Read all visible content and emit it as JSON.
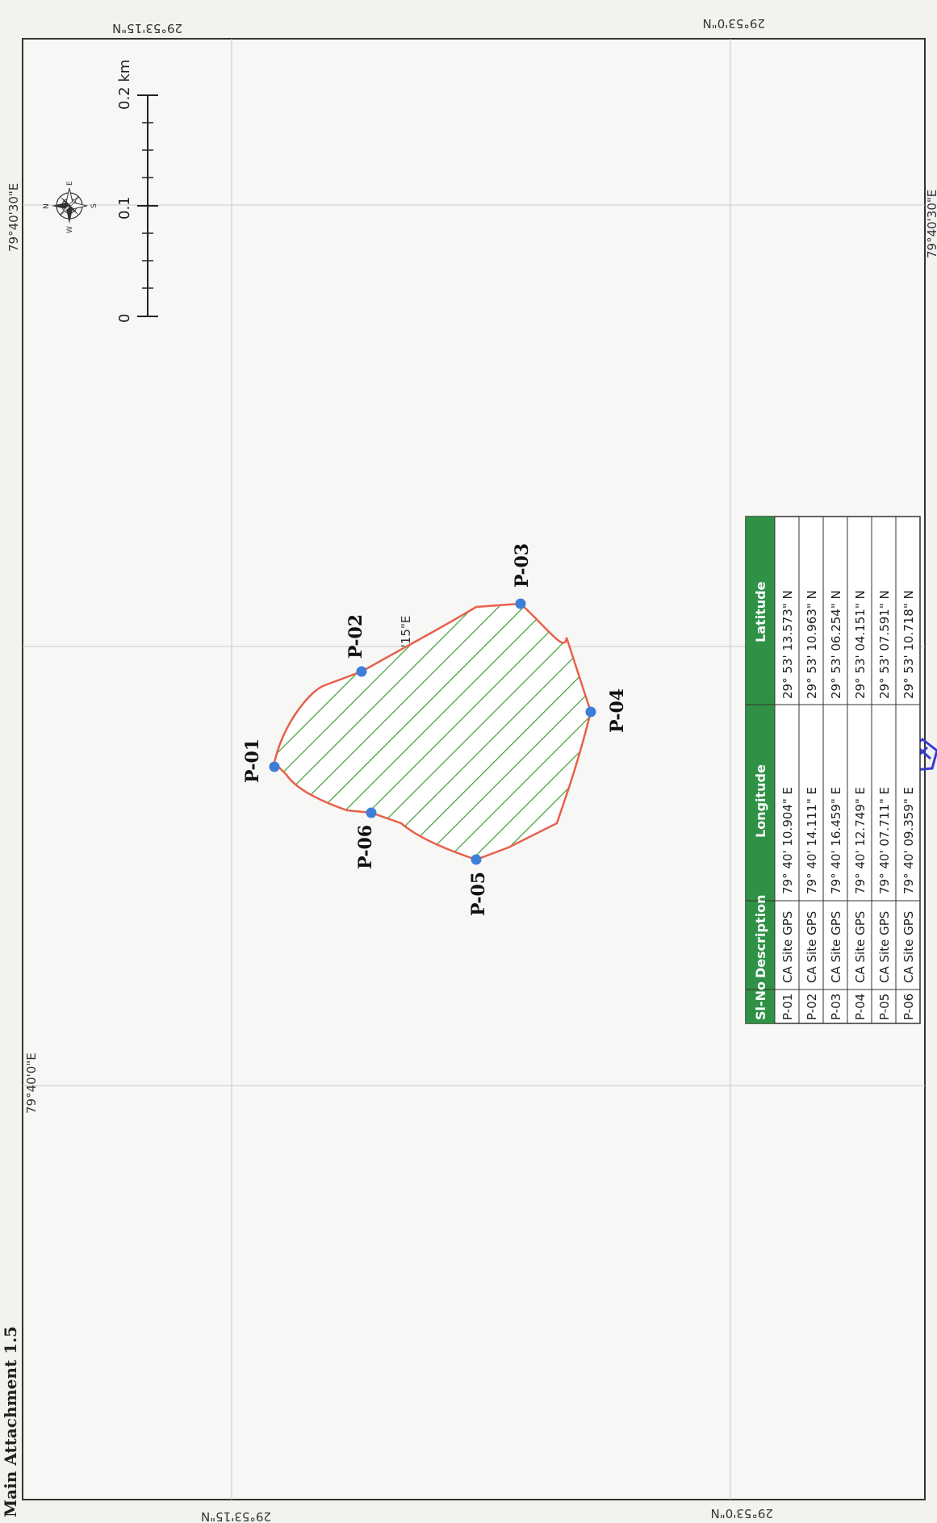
{
  "title": "Main Attachment 1.5",
  "scale_bar": {
    "ticks": [
      "0",
      "0.1",
      "0.2 km"
    ]
  },
  "north_arrow": {
    "icon": "compass-rose-icon",
    "letters": [
      "N",
      "E",
      "S",
      "W"
    ]
  },
  "coordinate_labels": {
    "lon_left": "79°40'0\"E",
    "lon_mid": "79°40'15\"E",
    "lon_right_top": "79°40'30\"E",
    "lon_right_bottom": "79°40'30\"E",
    "lat_top_left": "29°53'15\"N",
    "lat_top_right": "29°53'0\"N",
    "lat_bottom_left": "29°53'15\"N",
    "lat_bottom_right": "29°53'0\"N"
  },
  "points": [
    {
      "id": "P-01",
      "description": "CA Site GPS",
      "longitude": "79° 40' 10.904\" E",
      "latitude": "29° 53' 13.573\" N"
    },
    {
      "id": "P-02",
      "description": "CA Site GPS",
      "longitude": "79° 40' 14.111\" E",
      "latitude": "29° 53' 10.963\" N"
    },
    {
      "id": "P-03",
      "description": "CA Site GPS",
      "longitude": "79° 40' 16.459\" E",
      "latitude": "29° 53' 06.254\" N"
    },
    {
      "id": "P-04",
      "description": "CA Site GPS",
      "longitude": "79° 40' 12.749\" E",
      "latitude": "29° 53' 04.151\" N"
    },
    {
      "id": "P-05",
      "description": "CA Site GPS",
      "longitude": "79° 40' 07.711\" E",
      "latitude": "29° 53' 07.591\" N"
    },
    {
      "id": "P-06",
      "description": "CA Site GPS",
      "longitude": "79° 40' 09.359\" E",
      "latitude": "29° 53' 10.718\" N"
    }
  ],
  "table": {
    "headers": [
      "Sl-No",
      "Description",
      "Longitude",
      "Latitude"
    ]
  },
  "colors": {
    "boundary": "#e8604c",
    "hatch": "#3f9d32",
    "marker": "#3d7fd6",
    "table_header": "#2e9146",
    "stamp": "#3a3ad6"
  }
}
